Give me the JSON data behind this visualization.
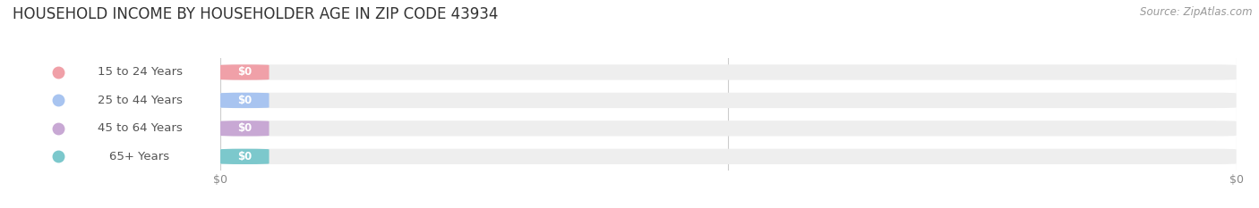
{
  "title": "HOUSEHOLD INCOME BY HOUSEHOLDER AGE IN ZIP CODE 43934",
  "source_text": "Source: ZipAtlas.com",
  "categories": [
    "15 to 24 Years",
    "25 to 44 Years",
    "45 to 64 Years",
    "65+ Years"
  ],
  "values": [
    0,
    0,
    0,
    0
  ],
  "bar_colors": [
    "#f0a0a8",
    "#a8c4f0",
    "#c8a8d4",
    "#7cc8cc"
  ],
  "background_color": "#ffffff",
  "bar_bg_color": "#eeeeee",
  "bar_height": 0.55,
  "title_fontsize": 12,
  "label_fontsize": 9.5,
  "value_fontsize": 8.5,
  "source_fontsize": 8.5,
  "tick_fontsize": 9
}
